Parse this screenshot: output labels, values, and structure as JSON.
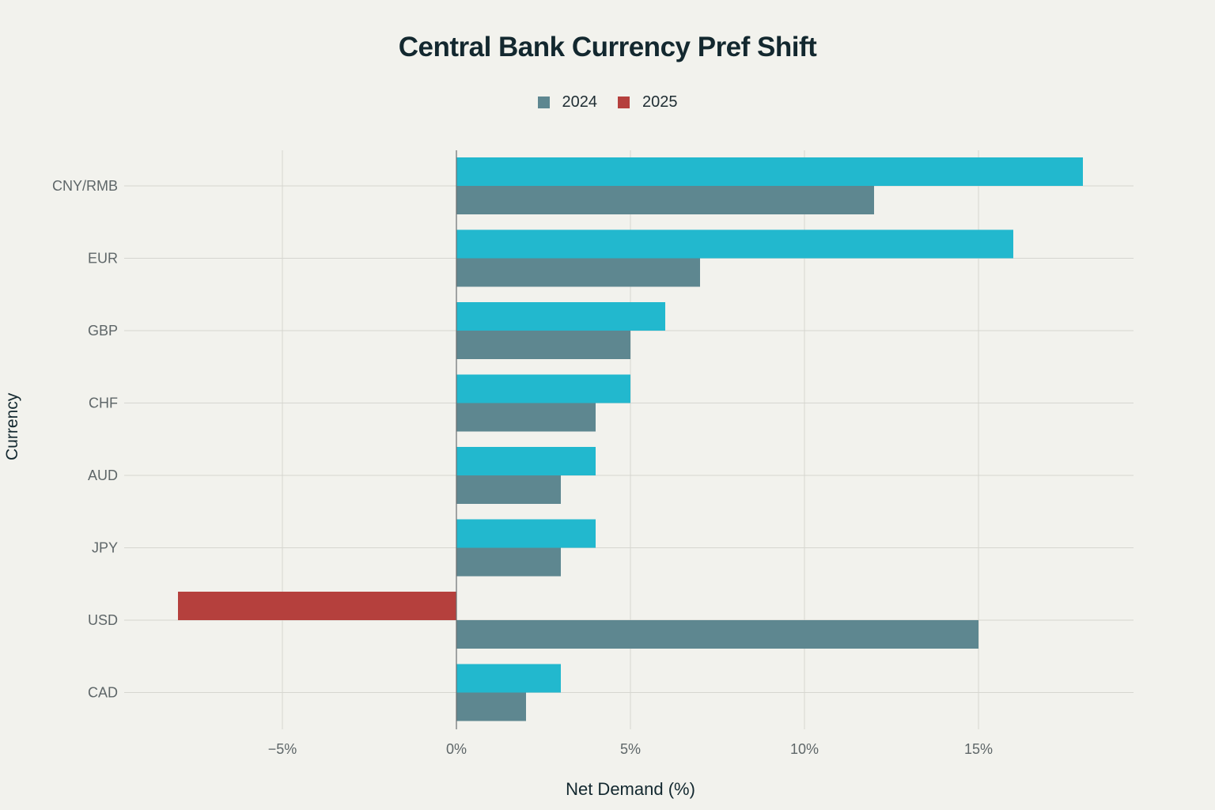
{
  "title": "Central Bank Currency Pref Shift",
  "legend": [
    {
      "label": "2024",
      "color": "#5e8790"
    },
    {
      "label": "2025",
      "color": "#b5403d"
    }
  ],
  "colors": {
    "series_2024": "#5e8790",
    "series_2025_positive": "#22b8ce",
    "series_2025_negative": "#b5403d",
    "background": "#f2f2ed",
    "grid": "#d6d6d0"
  },
  "axes": {
    "x_label": "Net Demand (%)",
    "y_label": "Currency",
    "x_ticks": [
      "−5%",
      "0%",
      "5%",
      "10%",
      "15%"
    ]
  },
  "chart_data": {
    "type": "bar",
    "orientation": "horizontal",
    "title": "Central Bank Currency Pref Shift",
    "xlabel": "Net Demand (%)",
    "ylabel": "Currency",
    "categories": [
      "CNY/RMB",
      "EUR",
      "GBP",
      "CHF",
      "AUD",
      "JPY",
      "USD",
      "CAD"
    ],
    "series": [
      {
        "name": "2024",
        "values": [
          12,
          7,
          5,
          4,
          3,
          3,
          15,
          2
        ]
      },
      {
        "name": "2025",
        "values": [
          18,
          16,
          6,
          5,
          4,
          4,
          -8,
          3
        ]
      }
    ],
    "xlim": [
      -9,
      19.5
    ],
    "x_ticks": [
      -5,
      0,
      5,
      10,
      15
    ],
    "grid": true,
    "legend_position": "top-center"
  }
}
